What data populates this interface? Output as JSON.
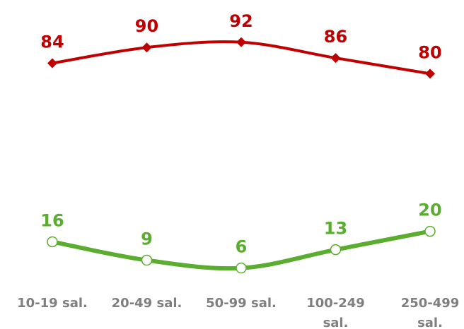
{
  "chart_data": {
    "type": "line",
    "categories": [
      "10-19 sal.",
      "20-49 sal.",
      "50-99 sal.",
      "100-249 sal.",
      "250-499 sal."
    ],
    "series": [
      {
        "color": "#c00000",
        "marker": "diamond",
        "values": [
          84,
          90,
          92,
          86,
          80
        ]
      },
      {
        "color": "#5aad2e",
        "marker": "circle",
        "values": [
          16,
          9,
          6,
          13,
          20
        ]
      }
    ]
  }
}
